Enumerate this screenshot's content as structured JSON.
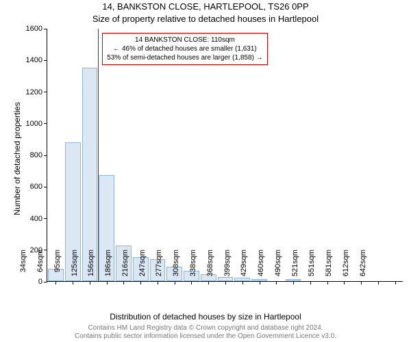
{
  "chart": {
    "type": "histogram",
    "title_line1": "14, BANKSTON CLOSE, HARTLEPOOL, TS26 0PP",
    "title_line2": "Size of property relative to detached houses in Hartlepool",
    "ylabel": "Number of detached properties",
    "xlabel": "Distribution of detached houses by size in Hartlepool",
    "attribution_line1": "Contains HM Land Registry data © Crown copyright and database right 2024.",
    "attribution_line2": "Contains public sector information licensed under the Open Government Licence v3.0.",
    "background_color": "#ffffff",
    "bar_fill": "#dbe7f3",
    "bar_stroke": "#8fb4d9",
    "axis_color": "#000000",
    "marker_color": "#cc0000",
    "ylim_max": 1600,
    "ytick_step": 200,
    "marker_x_category": "110sqm",
    "callout": {
      "line1": "14 BANKSTON CLOSE: 110sqm",
      "line2": "← 46% of detached houses are smaller (1,631)",
      "line3": "53% of semi-detached houses are larger (1,858) →"
    },
    "categories": [
      "34sqm",
      "64sqm",
      "95sqm",
      "125sqm",
      "156sqm",
      "186sqm",
      "216sqm",
      "247sqm",
      "277sqm",
      "308sqm",
      "338sqm",
      "368sqm",
      "399sqm",
      "429sqm",
      "460sqm",
      "490sqm",
      "521sqm",
      "551sqm",
      "581sqm",
      "612sqm",
      "642sqm"
    ],
    "values": [
      80,
      880,
      1350,
      670,
      225,
      150,
      140,
      90,
      65,
      45,
      25,
      20,
      15,
      0,
      15,
      0,
      0,
      0,
      0,
      0,
      0
    ],
    "title_fontsize": 13,
    "label_fontsize": 12,
    "tick_fontsize": 11,
    "callout_fontsize": 10,
    "attribution_fontsize": 10
  }
}
